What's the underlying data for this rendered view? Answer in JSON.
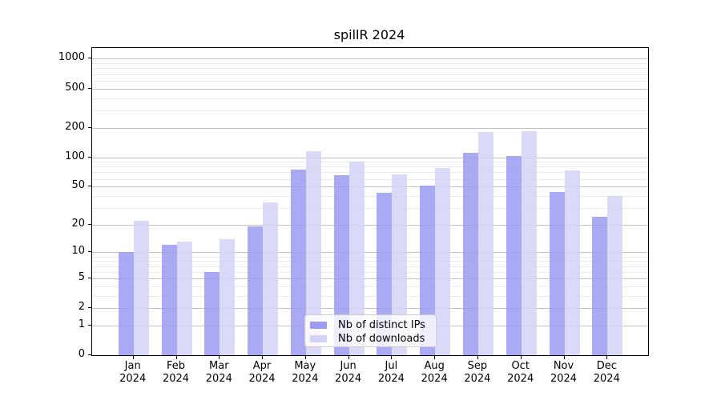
{
  "title": "spillR 2024",
  "chart_data": {
    "type": "bar",
    "title": "spillR 2024",
    "categories": [
      "Jan",
      "Feb",
      "Mar",
      "Apr",
      "May",
      "Jun",
      "Jul",
      "Aug",
      "Sep",
      "Oct",
      "Nov",
      "Dec"
    ],
    "year_label": "2024",
    "series": [
      {
        "name": "Nb of distinct IPs",
        "color": "#9b9bf2",
        "values": [
          10,
          12,
          6,
          19,
          75,
          66,
          43,
          51,
          110,
          103,
          44,
          24
        ]
      },
      {
        "name": "Nb of downloads",
        "color": "#d3d3f7",
        "values": [
          22,
          13,
          14,
          34,
          115,
          90,
          67,
          77,
          181,
          185,
          73,
          40
        ]
      }
    ],
    "xlabel": "",
    "ylabel": "",
    "y_scale": "log1p",
    "y_ticks": [
      0,
      1,
      2,
      5,
      10,
      20,
      50,
      100,
      200,
      500,
      1000
    ],
    "y_minor_ticks": [
      3,
      4,
      6,
      7,
      8,
      9,
      30,
      40,
      60,
      70,
      80,
      90,
      300,
      400,
      600,
      700,
      800,
      900
    ],
    "ylim": [
      0,
      1285
    ],
    "grid": "major+minor",
    "legend_position": "inside lower-center",
    "colors": {
      "major_grid": "#c2c2c2",
      "minor_grid": "#ebebeb",
      "spine": "#000000",
      "background": "#ffffff"
    }
  }
}
